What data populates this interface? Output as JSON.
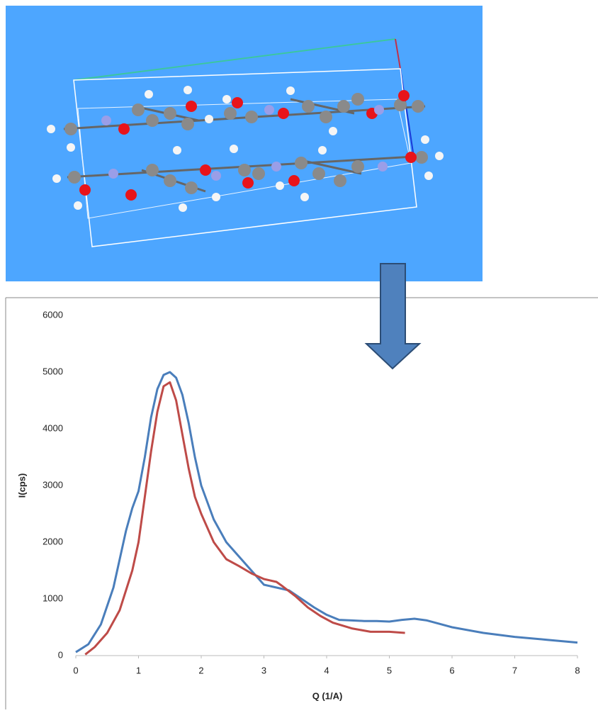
{
  "chart_data": {
    "type": "line",
    "xlabel": "Q (1/A)",
    "ylabel": "I(cps)",
    "xlim": [
      0,
      8
    ],
    "xticks": [
      0,
      1,
      2,
      3,
      4,
      5,
      6,
      7,
      8
    ],
    "ylim": [
      0,
      6000
    ],
    "yticks": [
      0,
      1000,
      2000,
      3000,
      4000,
      5000,
      6000
    ],
    "grid": false,
    "series": [
      {
        "color": "#4a7ebb",
        "x": [
          0,
          0.2,
          0.4,
          0.6,
          0.8,
          0.9,
          1.0,
          1.1,
          1.2,
          1.3,
          1.4,
          1.5,
          1.6,
          1.7,
          1.8,
          1.9,
          2.0,
          2.2,
          2.4,
          2.6,
          2.8,
          3.0,
          3.2,
          3.4,
          3.6,
          3.8,
          4.0,
          4.2,
          4.4,
          4.6,
          4.8,
          5.0,
          5.2,
          5.4,
          5.6,
          5.8,
          6.0,
          6.5,
          7.0,
          7.5,
          8.0
        ],
        "values": [
          60,
          200,
          550,
          1200,
          2200,
          2600,
          2900,
          3500,
          4200,
          4700,
          4950,
          5000,
          4900,
          4600,
          4100,
          3500,
          3000,
          2400,
          2000,
          1750,
          1500,
          1250,
          1200,
          1150,
          1000,
          850,
          720,
          630,
          620,
          610,
          610,
          600,
          630,
          650,
          620,
          560,
          500,
          400,
          330,
          280,
          230
        ]
      },
      {
        "color": "#be4b48",
        "x": [
          0.15,
          0.3,
          0.5,
          0.7,
          0.9,
          1.0,
          1.1,
          1.2,
          1.3,
          1.4,
          1.5,
          1.6,
          1.7,
          1.8,
          1.9,
          2.0,
          2.2,
          2.4,
          2.6,
          2.8,
          3.0,
          3.2,
          3.3,
          3.5,
          3.7,
          3.9,
          4.1,
          4.4,
          4.7,
          5.0,
          5.25
        ],
        "values": [
          20,
          150,
          400,
          800,
          1500,
          2000,
          2800,
          3600,
          4300,
          4750,
          4820,
          4500,
          3900,
          3300,
          2800,
          2500,
          2000,
          1700,
          1580,
          1450,
          1350,
          1300,
          1220,
          1050,
          850,
          700,
          580,
          480,
          420,
          420,
          400
        ]
      }
    ]
  }
}
